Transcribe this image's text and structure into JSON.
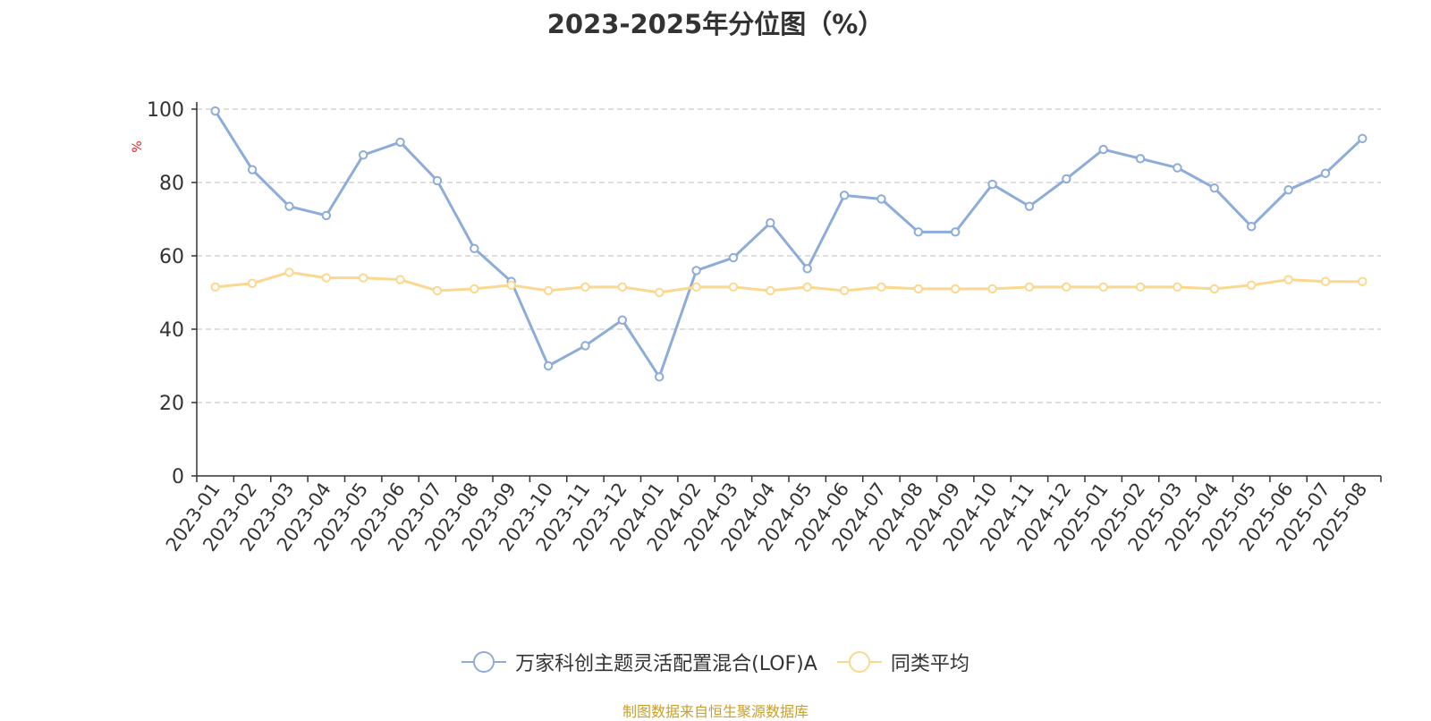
{
  "chart_data": {
    "type": "line",
    "title": "2023-2025年分位图（%）",
    "ylabel": "%",
    "xlabel": "",
    "ylim": [
      0,
      100
    ],
    "yticks": [
      0,
      20,
      40,
      60,
      80,
      100
    ],
    "grid": true,
    "legend_position": "bottom",
    "categories": [
      "2023-01",
      "2023-02",
      "2023-03",
      "2023-04",
      "2023-05",
      "2023-06",
      "2023-07",
      "2023-08",
      "2023-09",
      "2023-10",
      "2023-11",
      "2023-12",
      "2024-01",
      "2024-02",
      "2024-03",
      "2024-04",
      "2024-05",
      "2024-06",
      "2024-07",
      "2024-08",
      "2024-09",
      "2024-10",
      "2024-11",
      "2024-12",
      "2025-01",
      "2025-02",
      "2025-03",
      "2025-04",
      "2025-05",
      "2025-06",
      "2025-07",
      "2025-08"
    ],
    "series": [
      {
        "name": "万家科创主题灵活配置混合(LOF)A",
        "color": "#8eacd9",
        "values": [
          99.5,
          83.5,
          73.5,
          71,
          87.5,
          91,
          80.5,
          62,
          53,
          30,
          35.5,
          42.5,
          27,
          56,
          59.5,
          69,
          56.5,
          76.5,
          75.5,
          66.5,
          66.5,
          79.5,
          73.5,
          81,
          89,
          86.5,
          84,
          78.5,
          68,
          78,
          82.5,
          92
        ]
      },
      {
        "name": "同类平均",
        "color": "#fbd88f",
        "values": [
          51.5,
          52.5,
          55.5,
          54,
          54,
          53.5,
          50.5,
          51,
          52,
          50.5,
          51.5,
          51.5,
          50,
          51.5,
          51.5,
          50.5,
          51.5,
          50.5,
          51.5,
          51,
          51,
          51,
          51.5,
          51.5,
          51.5,
          51.5,
          51.5,
          51,
          52,
          53.5,
          53,
          53
        ]
      }
    ]
  },
  "source_note": "制图数据来自恒生聚源数据库",
  "colors": {
    "axis": "#333333",
    "grid": "#cccccc",
    "ylabel": "#e02020",
    "source": "#c8a02a"
  }
}
